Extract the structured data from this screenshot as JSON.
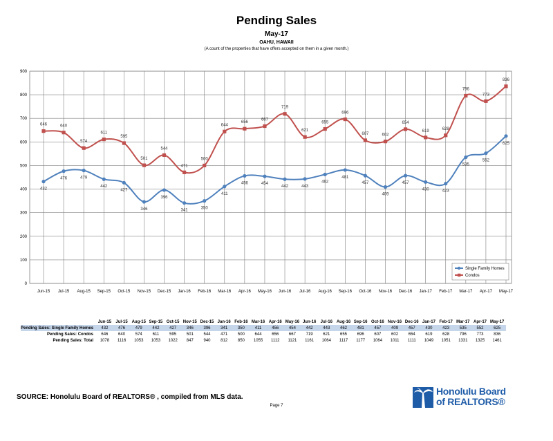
{
  "header": {
    "title": "Pending Sales",
    "subtitle": "May-17",
    "region": "OAHU, HAWAII",
    "note": "(A count of the properties that have offers accepted on them in a given month.)"
  },
  "chart_data": {
    "type": "line",
    "title": "Pending Sales",
    "categories": [
      "Jun-15",
      "Jul-15",
      "Aug-15",
      "Sep-15",
      "Oct-15",
      "Nov-15",
      "Dec-15",
      "Jan-16",
      "Feb-16",
      "Mar-16",
      "Apr-16",
      "May-16",
      "Jun-16",
      "Jul-16",
      "Aug-16",
      "Sep-16",
      "Oct-16",
      "Nov-16",
      "Dec-16",
      "Jan-17",
      "Feb-17",
      "Mar-17",
      "Apr-17",
      "May-17"
    ],
    "ylim": [
      0,
      900
    ],
    "yticks": [
      0,
      100,
      200,
      300,
      400,
      500,
      600,
      700,
      800,
      900
    ],
    "grid": true,
    "legend_position": "bottom-right",
    "series": [
      {
        "name": "Single Family Homes",
        "color": "#4f81bd",
        "values": [
          432,
          476,
          479,
          442,
          427,
          346,
          396,
          341,
          350,
          411,
          456,
          454,
          442,
          443,
          462,
          481,
          457,
          409,
          457,
          430,
          423,
          535,
          552,
          625
        ]
      },
      {
        "name": "Condos",
        "color": "#c0504d",
        "values": [
          646,
          640,
          574,
          611,
          595,
          501,
          544,
          471,
          500,
          644,
          656,
          667,
          719,
          621,
          655,
          696,
          607,
          602,
          654,
          619,
          628,
          796,
          773,
          836
        ]
      }
    ]
  },
  "table": {
    "rows": [
      {
        "label": "Pending Sales: Single Family Homes",
        "values": [
          432,
          476,
          479,
          442,
          427,
          346,
          396,
          341,
          350,
          411,
          456,
          454,
          442,
          443,
          462,
          481,
          457,
          409,
          457,
          430,
          423,
          535,
          552,
          625
        ]
      },
      {
        "label": "Pending Sales: Condos",
        "values": [
          646,
          640,
          574,
          611,
          595,
          501,
          544,
          471,
          500,
          644,
          656,
          667,
          719,
          621,
          655,
          696,
          607,
          602,
          654,
          619,
          628,
          796,
          773,
          836
        ]
      },
      {
        "label": "Pending Sales: Total",
        "values": [
          1078,
          1116,
          1053,
          1053,
          1022,
          847,
          940,
          812,
          850,
          1055,
          1112,
          1121,
          1161,
          1064,
          1117,
          1177,
          1064,
          1011,
          1111,
          1049,
          1051,
          1331,
          1325,
          1461
        ]
      }
    ]
  },
  "footer": {
    "source": "SOURCE:  Honolulu Board of REALTORS® , compiled from MLS data.",
    "page": "Page 7",
    "logo_line1": "Honolulu Board",
    "logo_line2": "of REALTORS®"
  }
}
